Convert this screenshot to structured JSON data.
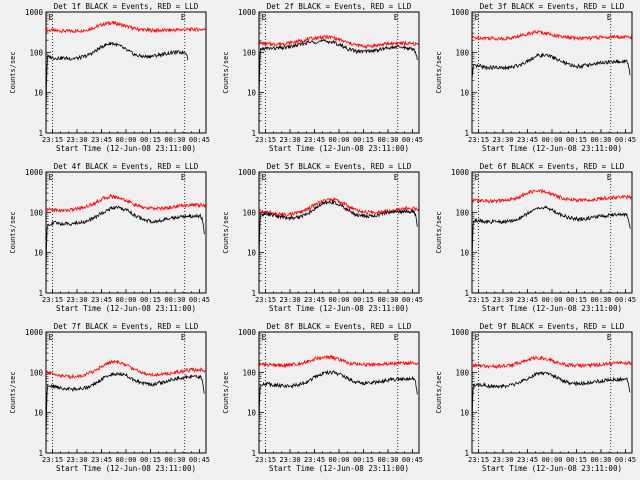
{
  "figure": {
    "ylabel": "Counts/sec",
    "xlabel": "Start Time (12-Jun-08 23:11:00)"
  },
  "chart_data": [
    {
      "type": "line",
      "title": "Det 1f BLACK = Events, RED = LLD",
      "xticks": [
        "23:15",
        "23:30",
        "23:45",
        "00:00",
        "00:15",
        "00:30",
        "00:45"
      ],
      "yticks": [
        "1",
        "10",
        "100",
        "1000"
      ],
      "ylog": true,
      "ylim": [
        1,
        1000
      ],
      "marker_labels": [
        "E",
        "E"
      ],
      "series": [
        {
          "color": "#ff0000",
          "t": [
            0,
            2,
            5,
            10,
            15,
            20,
            25,
            30,
            35,
            40,
            45,
            50,
            55,
            60,
            65,
            70,
            75,
            80,
            85,
            90,
            95,
            98
          ],
          "values": [
            350,
            350,
            345,
            340,
            335,
            340,
            360,
            420,
            500,
            540,
            500,
            430,
            380,
            360,
            350,
            350,
            355,
            360,
            365,
            370,
            370,
            370
          ]
        },
        {
          "color": "#000000",
          "t": [
            0,
            0.5,
            1,
            2,
            5,
            10,
            15,
            20,
            25,
            30,
            35,
            40,
            45,
            50,
            55,
            60,
            65,
            70,
            75,
            80,
            84,
            85,
            86,
            87
          ],
          "values": [
            4,
            40,
            75,
            78,
            72,
            72,
            70,
            72,
            82,
            105,
            145,
            170,
            145,
            110,
            85,
            78,
            80,
            88,
            95,
            100,
            100,
            102,
            100,
            60
          ]
        }
      ]
    },
    {
      "type": "line",
      "title": "Det 2f BLACK = Events, RED = LLD",
      "xticks": [
        "23:15",
        "23:30",
        "23:45",
        "00:00",
        "00:15",
        "00:30",
        "00:45"
      ],
      "yticks": [
        "1",
        "10",
        "100",
        "1000"
      ],
      "ylog": true,
      "ylim": [
        1,
        1000
      ],
      "marker_labels": [
        "E",
        "E"
      ],
      "series": [
        {
          "color": "#ff0000",
          "t": [
            0,
            5,
            10,
            15,
            20,
            25,
            30,
            35,
            40,
            45,
            50,
            55,
            60,
            65,
            70,
            75,
            80,
            85,
            90,
            95,
            98
          ],
          "values": [
            170,
            160,
            160,
            165,
            175,
            190,
            210,
            230,
            240,
            235,
            200,
            170,
            150,
            140,
            145,
            155,
            165,
            170,
            165,
            160,
            160
          ]
        },
        {
          "color": "#000000",
          "t": [
            0,
            0.5,
            1,
            5,
            10,
            15,
            20,
            25,
            30,
            35,
            40,
            45,
            50,
            55,
            60,
            65,
            70,
            75,
            80,
            85,
            90,
            94,
            95,
            96,
            97
          ],
          "values": [
            5,
            60,
            120,
            125,
            125,
            130,
            140,
            155,
            175,
            185,
            190,
            180,
            150,
            120,
            105,
            105,
            110,
            120,
            130,
            135,
            130,
            120,
            115,
            100,
            65
          ]
        }
      ]
    },
    {
      "type": "line",
      "title": "Det 3f BLACK = Events, RED = LLD",
      "xticks": [
        "23:15",
        "23:30",
        "23:45",
        "00:00",
        "00:15",
        "00:30",
        "00:45"
      ],
      "yticks": [
        "1",
        "10",
        "100",
        "1000"
      ],
      "ylog": true,
      "ylim": [
        1,
        1000
      ],
      "marker_labels": [
        "E",
        "E"
      ],
      "series": [
        {
          "color": "#ff0000",
          "t": [
            0,
            5,
            10,
            15,
            20,
            25,
            30,
            35,
            40,
            45,
            50,
            55,
            60,
            65,
            70,
            75,
            80,
            85,
            90,
            95,
            98
          ],
          "values": [
            230,
            230,
            225,
            220,
            220,
            230,
            260,
            300,
            320,
            300,
            270,
            240,
            230,
            225,
            225,
            230,
            235,
            240,
            240,
            240,
            240
          ]
        },
        {
          "color": "#000000",
          "t": [
            0,
            0.5,
            1,
            5,
            10,
            15,
            20,
            25,
            30,
            35,
            40,
            45,
            50,
            55,
            60,
            65,
            70,
            75,
            80,
            85,
            90,
            94,
            95,
            96,
            97
          ],
          "values": [
            20,
            35,
            45,
            45,
            42,
            42,
            40,
            43,
            50,
            65,
            82,
            85,
            75,
            58,
            48,
            45,
            48,
            52,
            55,
            57,
            58,
            60,
            58,
            45,
            25
          ]
        }
      ]
    },
    {
      "type": "line",
      "title": "Det 4f BLACK = Events, RED = LLD",
      "xticks": [
        "23:15",
        "23:30",
        "23:45",
        "00:00",
        "00:15",
        "00:30",
        "00:45"
      ],
      "yticks": [
        "1",
        "10",
        "100",
        "1000"
      ],
      "ylog": true,
      "ylim": [
        1,
        1000
      ],
      "marker_labels": [
        "E",
        "E"
      ],
      "series": [
        {
          "color": "#ff0000",
          "t": [
            0,
            5,
            10,
            15,
            20,
            25,
            30,
            35,
            40,
            45,
            50,
            55,
            60,
            65,
            70,
            75,
            80,
            85,
            90,
            95,
            98
          ],
          "values": [
            120,
            115,
            110,
            115,
            125,
            140,
            170,
            220,
            250,
            230,
            190,
            150,
            130,
            125,
            125,
            130,
            140,
            150,
            155,
            150,
            145
          ]
        },
        {
          "color": "#000000",
          "t": [
            0,
            0.5,
            1,
            5,
            10,
            15,
            20,
            25,
            30,
            35,
            40,
            45,
            50,
            55,
            60,
            65,
            70,
            75,
            80,
            85,
            90,
            94,
            95,
            96,
            97
          ],
          "values": [
            4,
            30,
            50,
            55,
            52,
            52,
            55,
            60,
            75,
            100,
            125,
            130,
            110,
            80,
            65,
            60,
            62,
            68,
            75,
            80,
            80,
            82,
            78,
            60,
            30
          ]
        }
      ]
    },
    {
      "type": "line",
      "title": "Det 5f BLACK = Events, RED = LLD",
      "xticks": [
        "23:15",
        "23:30",
        "23:45",
        "00:00",
        "00:15",
        "00:30",
        "00:45"
      ],
      "yticks": [
        "1",
        "10",
        "100",
        "1000"
      ],
      "ylog": true,
      "ylim": [
        1,
        1000
      ],
      "marker_labels": [
        "E",
        "E"
      ],
      "series": [
        {
          "color": "#ff0000",
          "t": [
            0,
            5,
            10,
            15,
            20,
            25,
            30,
            35,
            40,
            45,
            50,
            55,
            60,
            65,
            70,
            75,
            80,
            85,
            90,
            95,
            98
          ],
          "values": [
            110,
            100,
            92,
            88,
            90,
            100,
            120,
            160,
            200,
            210,
            180,
            140,
            110,
            100,
            100,
            105,
            112,
            120,
            125,
            125,
            120
          ]
        },
        {
          "color": "#000000",
          "t": [
            0,
            0.5,
            1,
            5,
            10,
            15,
            20,
            25,
            30,
            35,
            40,
            45,
            50,
            55,
            60,
            65,
            70,
            75,
            80,
            85,
            90,
            94,
            95,
            96,
            97
          ],
          "values": [
            5,
            50,
            90,
            92,
            82,
            75,
            72,
            78,
            95,
            130,
            170,
            180,
            150,
            110,
            85,
            80,
            82,
            90,
            100,
            105,
            105,
            105,
            100,
            80,
            45
          ]
        }
      ]
    },
    {
      "type": "line",
      "title": "Det 6f BLACK = Events, RED = LLD",
      "xticks": [
        "23:15",
        "23:30",
        "23:45",
        "00:00",
        "00:15",
        "00:30",
        "00:45"
      ],
      "yticks": [
        "1",
        "10",
        "100",
        "1000"
      ],
      "ylog": true,
      "ylim": [
        1,
        1000
      ],
      "marker_labels": [
        "E",
        "E"
      ],
      "series": [
        {
          "color": "#ff0000",
          "t": [
            0,
            5,
            10,
            15,
            20,
            25,
            30,
            35,
            40,
            45,
            50,
            55,
            60,
            65,
            70,
            75,
            80,
            85,
            90,
            95,
            98
          ],
          "values": [
            200,
            195,
            190,
            190,
            195,
            210,
            250,
            310,
            340,
            320,
            270,
            230,
            210,
            200,
            200,
            210,
            220,
            230,
            240,
            240,
            235
          ]
        },
        {
          "color": "#000000",
          "t": [
            0,
            0.5,
            1,
            5,
            10,
            15,
            20,
            25,
            30,
            35,
            40,
            45,
            50,
            55,
            60,
            65,
            70,
            75,
            80,
            85,
            90,
            94,
            95,
            96,
            97
          ],
          "values": [
            5,
            40,
            60,
            62,
            58,
            58,
            57,
            62,
            75,
            100,
            125,
            130,
            110,
            85,
            72,
            68,
            70,
            75,
            80,
            85,
            88,
            88,
            85,
            65,
            35
          ]
        }
      ]
    },
    {
      "type": "line",
      "title": "Det 7f BLACK = Events, RED = LLD",
      "xticks": [
        "23:15",
        "23:30",
        "23:45",
        "00:00",
        "00:15",
        "00:30",
        "00:45"
      ],
      "yticks": [
        "1",
        "10",
        "100",
        "1000"
      ],
      "ylog": true,
      "ylim": [
        1,
        1000
      ],
      "marker_labels": [
        "E",
        "E"
      ],
      "series": [
        {
          "color": "#ff0000",
          "t": [
            0,
            5,
            10,
            15,
            20,
            25,
            30,
            35,
            40,
            45,
            50,
            55,
            60,
            65,
            70,
            75,
            80,
            85,
            90,
            95,
            98
          ],
          "values": [
            100,
            90,
            82,
            78,
            80,
            90,
            110,
            150,
            180,
            175,
            145,
            115,
            95,
            88,
            88,
            92,
            100,
            110,
            115,
            115,
            110
          ]
        },
        {
          "color": "#000000",
          "t": [
            0,
            0.5,
            1,
            5,
            10,
            15,
            20,
            25,
            30,
            35,
            40,
            45,
            50,
            55,
            60,
            65,
            70,
            75,
            80,
            85,
            90,
            94,
            95,
            96,
            97
          ],
          "values": [
            2,
            30,
            45,
            45,
            40,
            38,
            38,
            42,
            52,
            70,
            90,
            95,
            82,
            62,
            52,
            50,
            55,
            62,
            70,
            75,
            78,
            78,
            75,
            55,
            28
          ]
        }
      ]
    },
    {
      "type": "line",
      "title": "Det 8f BLACK = Events, RED = LLD",
      "xticks": [
        "23:15",
        "23:30",
        "23:45",
        "00:00",
        "00:15",
        "00:30",
        "00:45"
      ],
      "yticks": [
        "1",
        "10",
        "100",
        "1000"
      ],
      "ylog": true,
      "ylim": [
        1,
        1000
      ],
      "marker_labels": [
        "E",
        "E"
      ],
      "series": [
        {
          "color": "#ff0000",
          "t": [
            0,
            5,
            10,
            15,
            20,
            25,
            30,
            35,
            40,
            45,
            50,
            55,
            60,
            65,
            70,
            75,
            80,
            85,
            90,
            95,
            98
          ],
          "values": [
            160,
            155,
            150,
            150,
            155,
            165,
            190,
            220,
            240,
            230,
            200,
            170,
            160,
            155,
            155,
            160,
            165,
            170,
            170,
            170,
            170
          ]
        },
        {
          "color": "#000000",
          "t": [
            0,
            0.5,
            1,
            5,
            10,
            15,
            20,
            25,
            30,
            35,
            40,
            45,
            50,
            55,
            60,
            65,
            70,
            75,
            80,
            85,
            90,
            94,
            95,
            96,
            97
          ],
          "values": [
            5,
            35,
            50,
            52,
            48,
            47,
            46,
            50,
            60,
            78,
            95,
            100,
            88,
            68,
            57,
            54,
            56,
            60,
            65,
            68,
            70,
            70,
            68,
            55,
            30
          ]
        }
      ]
    },
    {
      "type": "line",
      "title": "Det 9f BLACK = Events, RED = LLD",
      "xticks": [
        "23:15",
        "23:30",
        "23:45",
        "00:00",
        "00:15",
        "00:30",
        "00:45"
      ],
      "yticks": [
        "1",
        "10",
        "100",
        "1000"
      ],
      "ylog": true,
      "ylim": [
        1,
        1000
      ],
      "marker_labels": [
        "E",
        "E"
      ],
      "series": [
        {
          "color": "#ff0000",
          "t": [
            0,
            5,
            10,
            15,
            20,
            25,
            30,
            35,
            40,
            45,
            50,
            55,
            60,
            65,
            70,
            75,
            80,
            85,
            90,
            95,
            98
          ],
          "values": [
            150,
            145,
            140,
            140,
            145,
            155,
            180,
            210,
            230,
            220,
            190,
            160,
            150,
            148,
            148,
            152,
            160,
            165,
            168,
            168,
            165
          ]
        },
        {
          "color": "#000000",
          "t": [
            0,
            0.5,
            1,
            5,
            10,
            15,
            20,
            25,
            30,
            35,
            40,
            45,
            50,
            55,
            60,
            65,
            70,
            75,
            80,
            85,
            90,
            94,
            95,
            96,
            97
          ],
          "values": [
            5,
            35,
            48,
            50,
            46,
            45,
            45,
            48,
            58,
            75,
            92,
            95,
            82,
            64,
            54,
            52,
            54,
            58,
            62,
            65,
            67,
            67,
            65,
            52,
            28
          ]
        }
      ]
    }
  ]
}
